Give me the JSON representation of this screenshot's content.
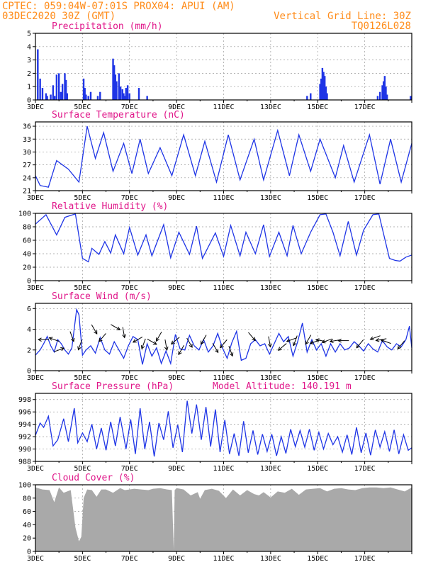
{
  "header": {
    "left_line1": "CPTEC:   059:04W-07:01S   PROX04: APUI (AM)",
    "left_line2": "03DEC2020 30Z (GMT)",
    "right_line1": "Vertical Grid Line: 30Z",
    "right_line2": "TQ0126L028"
  },
  "colors": {
    "series": "#1f35e6",
    "cloud": "#a9a9a9",
    "title": "#e0178a",
    "header": "#ff8c1a"
  },
  "x_ticks": [
    "3DEC",
    "5DEC",
    "7DEC",
    "9DEC",
    "11DEC",
    "13DEC",
    "15DEC",
    "17DEC"
  ],
  "chart_data": [
    {
      "type": "bar",
      "title": "Precipitation (mm/h)",
      "ylim": [
        0,
        5
      ],
      "yticks": [
        0,
        1,
        2,
        3,
        4,
        5
      ],
      "bars": [
        [
          0.1,
          3.8
        ],
        [
          0.2,
          1.6
        ],
        [
          0.3,
          0.9
        ],
        [
          0.45,
          0.5
        ],
        [
          0.5,
          0.3
        ],
        [
          0.65,
          0.4
        ],
        [
          0.75,
          1.1
        ],
        [
          0.82,
          0.3
        ],
        [
          0.9,
          1.9
        ],
        [
          1.0,
          2.0
        ],
        [
          1.08,
          0.6
        ],
        [
          1.15,
          1.2
        ],
        [
          1.25,
          2.0
        ],
        [
          1.3,
          1.5
        ],
        [
          1.35,
          0.5
        ],
        [
          2.05,
          1.6
        ],
        [
          2.1,
          0.9
        ],
        [
          2.15,
          0.4
        ],
        [
          2.25,
          0.3
        ],
        [
          2.35,
          0.6
        ],
        [
          2.65,
          0.3
        ],
        [
          2.75,
          0.6
        ],
        [
          3.3,
          3.1
        ],
        [
          3.35,
          2.6
        ],
        [
          3.4,
          1.9
        ],
        [
          3.45,
          1.4
        ],
        [
          3.55,
          2.0
        ],
        [
          3.62,
          1.0
        ],
        [
          3.7,
          0.8
        ],
        [
          3.75,
          0.5
        ],
        [
          3.8,
          0.3
        ],
        [
          3.85,
          0.9
        ],
        [
          3.92,
          1.1
        ],
        [
          4.0,
          0.5
        ],
        [
          4.4,
          0.9
        ],
        [
          4.75,
          0.3
        ],
        [
          11.55,
          0.3
        ],
        [
          11.7,
          0.5
        ],
        [
          12.1,
          1.2
        ],
        [
          12.15,
          1.6
        ],
        [
          12.2,
          2.4
        ],
        [
          12.25,
          2.1
        ],
        [
          12.3,
          1.8
        ],
        [
          12.35,
          1.0
        ],
        [
          12.4,
          0.5
        ],
        [
          14.55,
          0.3
        ],
        [
          14.65,
          0.6
        ],
        [
          14.75,
          1.1
        ],
        [
          14.8,
          1.4
        ],
        [
          14.85,
          1.8
        ],
        [
          14.9,
          1.0
        ],
        [
          14.95,
          0.4
        ],
        [
          15.95,
          0.3
        ]
      ]
    },
    {
      "type": "line",
      "title": "Surface Temperature (nC)",
      "ylim": [
        21,
        37
      ],
      "yticks": [
        21,
        24,
        27,
        30,
        33,
        36
      ],
      "x": [
        0,
        0.2,
        0.55,
        0.9,
        1.4,
        1.85,
        2.2,
        2.55,
        2.9,
        3.3,
        3.75,
        4.1,
        4.45,
        4.8,
        5.3,
        5.8,
        6.3,
        6.8,
        7.2,
        7.7,
        8.2,
        8.7,
        9.3,
        9.7,
        10.3,
        10.8,
        11.2,
        11.7,
        12.1,
        12.75,
        13.1,
        13.55,
        14.2,
        14.65,
        15.1,
        15.55,
        16.0
      ],
      "y": [
        24.5,
        22.2,
        21.8,
        28.0,
        26.0,
        23.0,
        36.0,
        28.5,
        34.5,
        25.5,
        32.0,
        25.0,
        33.0,
        25.0,
        31.0,
        24.5,
        34.0,
        24.5,
        32.5,
        23.0,
        34.0,
        23.5,
        33.0,
        23.5,
        35.0,
        24.5,
        34.0,
        25.5,
        33.0,
        24.0,
        31.5,
        23.0,
        34.0,
        22.5,
        33.0,
        23.0,
        32.0
      ]
    },
    {
      "type": "line",
      "title": "Relative Humidity (%)",
      "ylim": [
        0,
        100
      ],
      "yticks": [
        0,
        20,
        40,
        60,
        80,
        100
      ],
      "x": [
        0,
        0.45,
        0.9,
        1.25,
        1.5,
        1.7,
        2.0,
        2.25,
        2.4,
        2.7,
        2.95,
        3.2,
        3.4,
        3.75,
        4.0,
        4.35,
        4.7,
        4.95,
        5.45,
        5.75,
        6.1,
        6.55,
        6.85,
        7.1,
        7.65,
        8.0,
        8.3,
        8.7,
        8.95,
        9.35,
        9.7,
        9.95,
        10.35,
        10.7,
        10.95,
        11.3,
        11.7,
        12.1,
        12.35,
        12.65,
        12.95,
        13.3,
        13.65,
        13.95,
        14.35,
        14.6,
        15.05,
        15.3,
        15.5,
        15.75,
        16.0
      ],
      "y": [
        84,
        98,
        68,
        94,
        97,
        99,
        33,
        28,
        48,
        39,
        58,
        41,
        68,
        40,
        79,
        38,
        68,
        37,
        83,
        34,
        72,
        39,
        81,
        33,
        71,
        36,
        82,
        37,
        72,
        40,
        83,
        36,
        72,
        37,
        82,
        40,
        72,
        98,
        99,
        72,
        37,
        88,
        38,
        75,
        98,
        99,
        33,
        30,
        29,
        35,
        38
      ]
    },
    {
      "type": "line",
      "title": "Surface Wind (m/s)",
      "ylim": [
        0,
        6.5
      ],
      "yticks": [
        0,
        2,
        4,
        6
      ],
      "x": [
        0,
        0.2,
        0.35,
        0.5,
        0.65,
        0.8,
        0.95,
        1.1,
        1.25,
        1.4,
        1.55,
        1.75,
        1.85,
        2.0,
        2.15,
        2.35,
        2.55,
        2.75,
        2.95,
        3.15,
        3.35,
        3.55,
        3.75,
        3.95,
        4.15,
        4.35,
        4.55,
        4.75,
        4.95,
        5.15,
        5.35,
        5.55,
        5.75,
        5.95,
        6.15,
        6.35,
        6.55,
        6.75,
        6.95,
        7.15,
        7.35,
        7.55,
        7.75,
        7.95,
        8.15,
        8.35,
        8.55,
        8.75,
        8.95,
        9.15,
        9.35,
        9.55,
        9.75,
        9.95,
        10.15,
        10.35,
        10.55,
        10.75,
        10.95,
        11.15,
        11.35,
        11.55,
        11.75,
        11.95,
        12.15,
        12.35,
        12.55,
        12.75,
        12.95,
        13.15,
        13.35,
        13.55,
        13.75,
        13.95,
        14.15,
        14.35,
        14.55,
        14.75,
        14.95,
        15.15,
        15.35,
        15.55,
        15.75,
        15.9,
        16.0
      ],
      "y": [
        1.5,
        2.0,
        2.6,
        3.3,
        2.4,
        1.8,
        3.0,
        2.6,
        2.0,
        1.6,
        2.2,
        5.9,
        5.4,
        1.5,
        2.0,
        2.4,
        1.7,
        3.2,
        2.0,
        1.6,
        2.8,
        2.0,
        1.2,
        2.4,
        3.3,
        3.0,
        0.6,
        2.6,
        1.4,
        2.2,
        0.7,
        1.9,
        0.7,
        3.5,
        2.1,
        2.0,
        3.4,
        2.4,
        2.0,
        3.0,
        1.8,
        2.4,
        3.6,
        2.2,
        1.2,
        2.7,
        3.8,
        1.0,
        1.2,
        2.6,
        3.0,
        2.4,
        2.6,
        1.6,
        2.6,
        3.6,
        2.8,
        3.3,
        1.4,
        2.8,
        4.6,
        1.8,
        3.0,
        2.0,
        2.6,
        1.4,
        2.6,
        1.8,
        2.6,
        2.0,
        2.2,
        2.8,
        2.4,
        1.9,
        2.6,
        2.1,
        1.8,
        2.9,
        2.3,
        2.0,
        2.6,
        2.3,
        3.0,
        4.3,
        2.2
      ]
    },
    {
      "type": "line",
      "title": "Surface Pressure (hPa)",
      "annotation": "Model Altitude: 140.191 m",
      "ylim": [
        988,
        999
      ],
      "yticks": [
        988,
        990,
        992,
        994,
        996,
        998
      ],
      "x": [
        0,
        0.2,
        0.35,
        0.55,
        0.75,
        0.95,
        1.2,
        1.4,
        1.65,
        1.8,
        2.0,
        2.2,
        2.4,
        2.6,
        2.8,
        3.0,
        3.2,
        3.4,
        3.6,
        3.85,
        4.05,
        4.25,
        4.45,
        4.65,
        4.85,
        5.05,
        5.25,
        5.45,
        5.65,
        5.85,
        6.05,
        6.25,
        6.45,
        6.65,
        6.85,
        7.05,
        7.25,
        7.45,
        7.65,
        7.85,
        8.05,
        8.25,
        8.45,
        8.65,
        8.85,
        9.05,
        9.25,
        9.45,
        9.65,
        9.85,
        10.05,
        10.25,
        10.45,
        10.65,
        10.85,
        11.05,
        11.25,
        11.45,
        11.65,
        11.85,
        12.05,
        12.25,
        12.45,
        12.65,
        12.85,
        13.05,
        13.25,
        13.45,
        13.65,
        13.85,
        14.05,
        14.25,
        14.45,
        14.65,
        14.85,
        15.05,
        15.25,
        15.45,
        15.65,
        15.85,
        16.0
      ],
      "y": [
        992.2,
        994.2,
        993.5,
        995.3,
        990.5,
        991.5,
        994.9,
        991.2,
        996.6,
        991.0,
        992.6,
        991.2,
        994.0,
        990.0,
        993.4,
        989.8,
        994.4,
        990.5,
        995.2,
        990.0,
        994.8,
        989.2,
        996.6,
        990.0,
        994.4,
        988.8,
        994.2,
        991.5,
        996.1,
        990.2,
        993.9,
        989.5,
        997.8,
        992.5,
        997.2,
        991.5,
        996.8,
        990.4,
        996.4,
        989.5,
        994.7,
        989.2,
        992.5,
        988.9,
        994.5,
        989.4,
        993.0,
        989.1,
        992.4,
        989.6,
        992.4,
        988.9,
        992.0,
        989.3,
        993.2,
        990.4,
        993.0,
        990.3,
        993.2,
        989.8,
        992.7,
        990.0,
        992.5,
        990.7,
        992.0,
        989.5,
        992.3,
        989.1,
        993.5,
        989.4,
        992.6,
        989.0,
        993.1,
        990.3,
        992.8,
        989.6,
        993.1,
        989.2,
        992.3,
        989.8,
        990.2
      ]
    },
    {
      "type": "area",
      "title": "Cloud Cover (%)",
      "ylim": [
        0,
        100
      ],
      "yticks": [
        0,
        20,
        40,
        60,
        80,
        100
      ],
      "x": [
        0,
        0.3,
        0.6,
        0.8,
        1.0,
        1.2,
        1.5,
        1.7,
        1.85,
        1.95,
        2.05,
        2.2,
        2.4,
        2.6,
        2.8,
        3.0,
        3.3,
        3.6,
        3.8,
        4.0,
        4.2,
        4.5,
        4.8,
        5.0,
        5.3,
        5.6,
        5.8,
        5.88,
        5.92,
        6.0,
        6.3,
        6.6,
        6.9,
        7.0,
        7.2,
        7.5,
        7.8,
        8.1,
        8.4,
        8.7,
        9.0,
        9.3,
        9.5,
        9.7,
        10.0,
        10.3,
        10.6,
        10.9,
        11.2,
        11.5,
        11.8,
        12.1,
        12.4,
        12.7,
        13.0,
        13.3,
        13.6,
        13.9,
        14.2,
        14.5,
        14.8,
        15.1,
        15.4,
        15.7,
        16.0
      ],
      "y": [
        96,
        93,
        92,
        74,
        96,
        88,
        92,
        36,
        15,
        22,
        80,
        93,
        92,
        82,
        93,
        93,
        88,
        95,
        92,
        93,
        94,
        93,
        92,
        94,
        95,
        93,
        92,
        2,
        92,
        95,
        93,
        84,
        89,
        79,
        92,
        94,
        91,
        80,
        93,
        84,
        92,
        86,
        84,
        89,
        81,
        90,
        88,
        94,
        85,
        93,
        94,
        95,
        90,
        94,
        95,
        93,
        92,
        95,
        96,
        96,
        95,
        96,
        93,
        90,
        96
      ]
    }
  ],
  "wind_arrows": [
    {
      "d": 0.35,
      "s": 3.0,
      "ang": 180
    },
    {
      "d": 0.8,
      "s": 3.0,
      "ang": 160
    },
    {
      "d": 1.0,
      "s": 2.0,
      "ang": 20
    },
    {
      "d": 1.55,
      "s": 3.3,
      "ang": 290
    },
    {
      "d": 1.9,
      "s": 2.5,
      "ang": 250
    },
    {
      "d": 2.5,
      "s": 4.0,
      "ang": 300
    },
    {
      "d": 2.85,
      "s": 3.2,
      "ang": 230
    },
    {
      "d": 3.4,
      "s": 4.2,
      "ang": 330
    },
    {
      "d": 3.75,
      "s": 3.7,
      "ang": 280
    },
    {
      "d": 4.35,
      "s": 3.0,
      "ang": 210
    },
    {
      "d": 4.6,
      "s": 2.6,
      "ang": 250
    },
    {
      "d": 4.95,
      "s": 2.8,
      "ang": 330
    },
    {
      "d": 5.25,
      "s": 3.3,
      "ang": 240
    },
    {
      "d": 5.55,
      "s": 2.5,
      "ang": 280
    },
    {
      "d": 5.95,
      "s": 2.9,
      "ang": 220
    },
    {
      "d": 6.2,
      "s": 2.0,
      "ang": 240
    },
    {
      "d": 6.55,
      "s": 2.7,
      "ang": 300
    },
    {
      "d": 7.15,
      "s": 3.0,
      "ang": 240
    },
    {
      "d": 7.65,
      "s": 2.2,
      "ang": 300
    },
    {
      "d": 8.0,
      "s": 2.6,
      "ang": 230
    },
    {
      "d": 8.3,
      "s": 1.9,
      "ang": 290
    },
    {
      "d": 9.2,
      "s": 3.3,
      "ang": 310
    },
    {
      "d": 9.95,
      "s": 2.8,
      "ang": 280
    },
    {
      "d": 10.5,
      "s": 2.3,
      "ang": 220
    },
    {
      "d": 10.9,
      "s": 3.0,
      "ang": 200
    },
    {
      "d": 11.05,
      "s": 2.9,
      "ang": 250
    },
    {
      "d": 11.6,
      "s": 3.0,
      "ang": 240
    },
    {
      "d": 11.9,
      "s": 2.8,
      "ang": 200
    },
    {
      "d": 12.15,
      "s": 2.9,
      "ang": 170
    },
    {
      "d": 12.4,
      "s": 2.9,
      "ang": 200
    },
    {
      "d": 12.75,
      "s": 2.9,
      "ang": 190
    },
    {
      "d": 13.1,
      "s": 2.9,
      "ang": 180
    },
    {
      "d": 13.8,
      "s": 2.6,
      "ang": 230
    },
    {
      "d": 14.45,
      "s": 3.2,
      "ang": 200
    },
    {
      "d": 14.7,
      "s": 3.0,
      "ang": 190
    },
    {
      "d": 14.9,
      "s": 2.8,
      "ang": 160
    },
    {
      "d": 15.55,
      "s": 2.5,
      "ang": 230
    }
  ]
}
